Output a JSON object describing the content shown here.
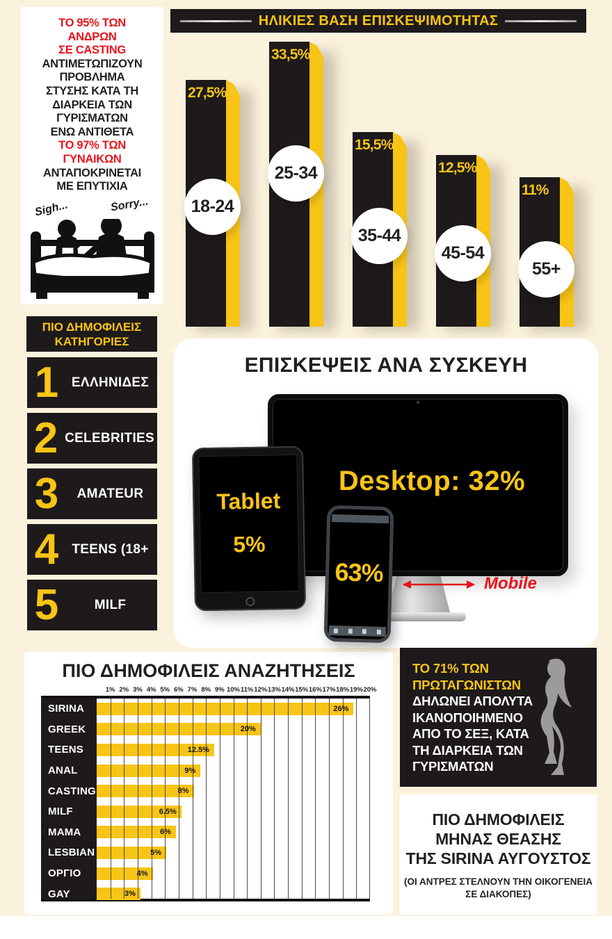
{
  "colors": {
    "background": "#FBF2DE",
    "yellow": "#F8C416",
    "panel_black": "#1E1A1B",
    "red": "#E8131C",
    "white": "#FFFFFF",
    "silhouette_gray": "#9B9B9B",
    "grid_line": "#4D4D4D"
  },
  "intro_card": {
    "lines": [
      {
        "text": "ΤΟ 95% ΤΩΝ",
        "red": true
      },
      {
        "text": "ΑΝΔΡΩΝ",
        "red": true
      },
      {
        "text": "ΣΕ CASTING",
        "red": true
      },
      {
        "text": "ΑΝΤΙΜΕΤΩΠΙΖΟΥΝ",
        "red": false
      },
      {
        "text": "ΠΡΟΒΛΗΜΑ",
        "red": false
      },
      {
        "text": "ΣΤΥΣΗΣ ΚΑΤΑ ΤΗ",
        "red": false
      },
      {
        "text": "ΔΙΑΡΚΕΙΑ ΤΩΝ",
        "red": false
      },
      {
        "text": "ΓΥΡΙΣΜΑΤΩΝ",
        "red": false
      },
      {
        "text": "ΕΝΩ ΑΝΤΙΘΕΤΑ",
        "red": false
      },
      {
        "text": "ΤΟ 97% ΤΩΝ",
        "red": true
      },
      {
        "text": "ΓΥΝΑΙΚΩΝ",
        "red": true
      },
      {
        "text": "ΑΝΤΑΠΟΚΡΙΝΕΤΑΙ",
        "red": false
      },
      {
        "text": "ΜΕ ΕΠΥΤΙΧΙΑ",
        "red": false
      }
    ],
    "sigh": "Sigh...",
    "sorry": "Sorry..."
  },
  "categories": {
    "header_line1": "ΠΙΟ ΔΗΜΟΦΙΛΕΙΣ",
    "header_line2": "ΚΑΤΗΓΟΡΙΕΣ",
    "items": [
      {
        "rank": "1",
        "label": "ΕΛΛΗΝΙΔΕΣ"
      },
      {
        "rank": "2",
        "label": "CELEBRITIES"
      },
      {
        "rank": "3",
        "label": "AMATEUR"
      },
      {
        "rank": "4",
        "label": "TEENS (18+"
      },
      {
        "rank": "5",
        "label": "MILF"
      }
    ]
  },
  "devices": {
    "title": "ΕΠΙΣΚΕΨΕΙΣ ΑΝΑ ΣΥΣΚΕΥΗ",
    "desktop_label": "Desktop: 32%",
    "tablet_label": "Tablet",
    "tablet_value": "5%",
    "mobile_value": "63%",
    "mobile_label": "Mobile"
  },
  "satisfaction_box": {
    "highlight_lines": [
      "ΤΟ 71% ΤΩΝ",
      "ΠΡΩΤΑΓΩΝΙΣΤΩΝ"
    ],
    "body_lines": [
      "ΔΗΛΩΝΕΙ ΑΠΟΛΥΤΑ",
      "ΙΚΑΝΟΠΟΙΗΜΕΝΟ",
      "ΑΠΟ ΤΟ ΣΕΞ, ΚΑΤΑ",
      "ΤΗ ΔΙΑΡΚΕΙΑ ΤΩΝ",
      "ΓΥΡΙΣΜΑΤΩΝ"
    ]
  },
  "month_box": {
    "title_lines": [
      "ΠΙΟ ΔΗΜΟΦΙΛΕΙΣ",
      "ΜΗΝΑΣ ΘΕΑΣΗΣ",
      "ΤΗΣ SIRINA ΑΥΓΟΥΣΤΟΣ"
    ],
    "subtitle_lines": [
      "(ΟΙ ΑΝΤΡΕΣ ΣΤΕΛΝΟΥΝ ΤΗΝ ΟΙΚΟΓΕΝΕΙΑ",
      "ΣΕ  ΔΙΑΚΟΠΕΣ)"
    ]
  },
  "chart_data": [
    {
      "type": "bar",
      "title": "ΗΛΙΚΙΕΣ ΒΑΣΗ ΕΠΙΣΚΕΨΙΜΟΤΗΤΑΣ",
      "categories": [
        "18-24",
        "25-34",
        "35-44",
        "45-54",
        "55+"
      ],
      "values": [
        27.5,
        33.5,
        15.5,
        12.5,
        11
      ],
      "value_labels": [
        "27,5%",
        "33,5%",
        "15,5%",
        "12,5%",
        "11%"
      ],
      "bar_pixel_heights": [
        355,
        410,
        280,
        247,
        215
      ],
      "circle_center_from_bottom": [
        172,
        220,
        130,
        105,
        82
      ],
      "xlabel": "",
      "ylabel": "",
      "grid": false,
      "legend_position": "none"
    },
    {
      "type": "bar",
      "orientation": "horizontal",
      "title": "ΠΙΟ ΔΗΜΟΦΙΛΕΙΣ ΑΝΑΖΗΤΗΣΕΙΣ",
      "categories": [
        "SIRINA",
        "GREEK",
        "TEENS",
        "ANAL",
        "CASTING",
        "MILF",
        "MAMA",
        "LESBIAN",
        "ΟΡΓΙΟ",
        "GAY"
      ],
      "values": [
        26,
        20,
        12.5,
        9,
        8,
        6.5,
        6,
        5,
        4,
        3
      ],
      "value_labels": [
        "26%",
        "20%",
        "12.5%",
        "9%",
        "8%",
        "6.5%",
        "6%",
        "5%",
        "4%",
        "3%"
      ],
      "bar_end_axis_units": [
        18.8,
        12.0,
        8.6,
        7.6,
        7.1,
        6.2,
        5.8,
        5.1,
        4.1,
        3.2
      ],
      "x_ticks": [
        "1%",
        "2%",
        "3%",
        "4%",
        "5%",
        "6%",
        "7%",
        "8%",
        "9%",
        "10%",
        "11%",
        "12%",
        "13%",
        "14%",
        "15%",
        "16%",
        "17%",
        "18%",
        "19%",
        "20%"
      ],
      "xlim": [
        0,
        20
      ],
      "grid": true,
      "legend_position": "none"
    },
    {
      "type": "pictogram",
      "title": "ΕΠΙΣΚΕΨΕΙΣ ΑΝΑ ΣΥΣΚΕΥΗ",
      "categories": [
        "Desktop",
        "Tablet",
        "Mobile"
      ],
      "values": [
        32,
        5,
        63
      ]
    }
  ]
}
